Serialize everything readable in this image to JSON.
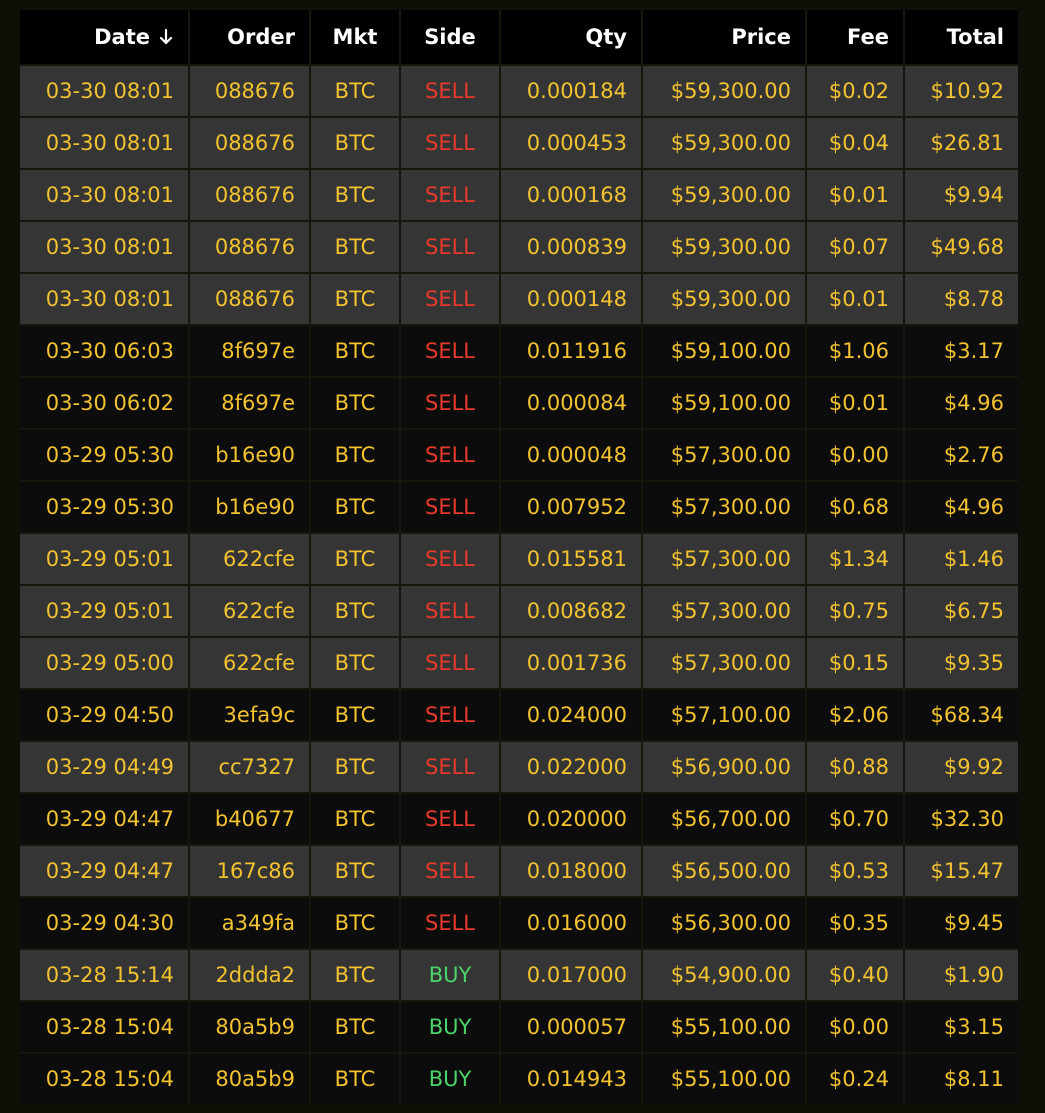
{
  "colors": {
    "page_bg": "#0f0f07",
    "header_bg": "#000000",
    "row_light": "#353535",
    "row_dark": "#0c0c0c",
    "text": "#f2c230",
    "sell": "#e8392a",
    "buy": "#4cd36a"
  },
  "header": {
    "date": "Date",
    "sort_icon": "arrow-down-icon",
    "order": "Order",
    "mkt": "Mkt",
    "side": "Side",
    "qty": "Qty",
    "price": "Price",
    "fee": "Fee",
    "total": "Total"
  },
  "rows": [
    {
      "date": "03-30 08:01",
      "order": "088676",
      "mkt": "BTC",
      "side": "SELL",
      "qty": "0.000184",
      "price": "$59,300.00",
      "fee": "$0.02",
      "total": "$10.92",
      "shade": "alt"
    },
    {
      "date": "03-30 08:01",
      "order": "088676",
      "mkt": "BTC",
      "side": "SELL",
      "qty": "0.000453",
      "price": "$59,300.00",
      "fee": "$0.04",
      "total": "$26.81",
      "shade": "alt"
    },
    {
      "date": "03-30 08:01",
      "order": "088676",
      "mkt": "BTC",
      "side": "SELL",
      "qty": "0.000168",
      "price": "$59,300.00",
      "fee": "$0.01",
      "total": "$9.94",
      "shade": "alt"
    },
    {
      "date": "03-30 08:01",
      "order": "088676",
      "mkt": "BTC",
      "side": "SELL",
      "qty": "0.000839",
      "price": "$59,300.00",
      "fee": "$0.07",
      "total": "$49.68",
      "shade": "alt"
    },
    {
      "date": "03-30 08:01",
      "order": "088676",
      "mkt": "BTC",
      "side": "SELL",
      "qty": "0.000148",
      "price": "$59,300.00",
      "fee": "$0.01",
      "total": "$8.78",
      "shade": "alt"
    },
    {
      "date": "03-30 06:03",
      "order": "8f697e",
      "mkt": "BTC",
      "side": "SELL",
      "qty": "0.011916",
      "price": "$59,100.00",
      "fee": "$1.06",
      "total": "$3.17",
      "shade": "dark"
    },
    {
      "date": "03-30 06:02",
      "order": "8f697e",
      "mkt": "BTC",
      "side": "SELL",
      "qty": "0.000084",
      "price": "$59,100.00",
      "fee": "$0.01",
      "total": "$4.96",
      "shade": "dark"
    },
    {
      "date": "03-29 05:30",
      "order": "b16e90",
      "mkt": "BTC",
      "side": "SELL",
      "qty": "0.000048",
      "price": "$57,300.00",
      "fee": "$0.00",
      "total": "$2.76",
      "shade": "dark"
    },
    {
      "date": "03-29 05:30",
      "order": "b16e90",
      "mkt": "BTC",
      "side": "SELL",
      "qty": "0.007952",
      "price": "$57,300.00",
      "fee": "$0.68",
      "total": "$4.96",
      "shade": "dark"
    },
    {
      "date": "03-29 05:01",
      "order": "622cfe",
      "mkt": "BTC",
      "side": "SELL",
      "qty": "0.015581",
      "price": "$57,300.00",
      "fee": "$1.34",
      "total": "$1.46",
      "shade": "alt"
    },
    {
      "date": "03-29 05:01",
      "order": "622cfe",
      "mkt": "BTC",
      "side": "SELL",
      "qty": "0.008682",
      "price": "$57,300.00",
      "fee": "$0.75",
      "total": "$6.75",
      "shade": "alt"
    },
    {
      "date": "03-29 05:00",
      "order": "622cfe",
      "mkt": "BTC",
      "side": "SELL",
      "qty": "0.001736",
      "price": "$57,300.00",
      "fee": "$0.15",
      "total": "$9.35",
      "shade": "alt"
    },
    {
      "date": "03-29 04:50",
      "order": "3efa9c",
      "mkt": "BTC",
      "side": "SELL",
      "qty": "0.024000",
      "price": "$57,100.00",
      "fee": "$2.06",
      "total": "$68.34",
      "shade": "dark"
    },
    {
      "date": "03-29 04:49",
      "order": "cc7327",
      "mkt": "BTC",
      "side": "SELL",
      "qty": "0.022000",
      "price": "$56,900.00",
      "fee": "$0.88",
      "total": "$9.92",
      "shade": "alt"
    },
    {
      "date": "03-29 04:47",
      "order": "b40677",
      "mkt": "BTC",
      "side": "SELL",
      "qty": "0.020000",
      "price": "$56,700.00",
      "fee": "$0.70",
      "total": "$32.30",
      "shade": "dark"
    },
    {
      "date": "03-29 04:47",
      "order": "167c86",
      "mkt": "BTC",
      "side": "SELL",
      "qty": "0.018000",
      "price": "$56,500.00",
      "fee": "$0.53",
      "total": "$15.47",
      "shade": "alt"
    },
    {
      "date": "03-29 04:30",
      "order": "a349fa",
      "mkt": "BTC",
      "side": "SELL",
      "qty": "0.016000",
      "price": "$56,300.00",
      "fee": "$0.35",
      "total": "$9.45",
      "shade": "dark"
    },
    {
      "date": "03-28 15:14",
      "order": "2ddda2",
      "mkt": "BTC",
      "side": "BUY",
      "qty": "0.017000",
      "price": "$54,900.00",
      "fee": "$0.40",
      "total": "$1.90",
      "shade": "alt"
    },
    {
      "date": "03-28 15:04",
      "order": "80a5b9",
      "mkt": "BTC",
      "side": "BUY",
      "qty": "0.000057",
      "price": "$55,100.00",
      "fee": "$0.00",
      "total": "$3.15",
      "shade": "dark"
    },
    {
      "date": "03-28 15:04",
      "order": "80a5b9",
      "mkt": "BTC",
      "side": "BUY",
      "qty": "0.014943",
      "price": "$55,100.00",
      "fee": "$0.24",
      "total": "$8.11",
      "shade": "dark"
    }
  ]
}
